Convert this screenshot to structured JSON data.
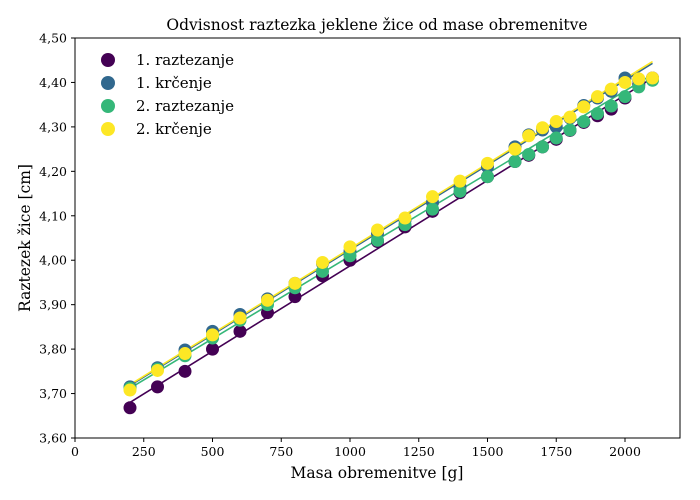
{
  "chart_data": {
    "type": "scatter",
    "title": "Odvisnost raztezka jeklene žice od mase obremenitve",
    "xlabel": "Masa obremenitve [g]",
    "ylabel": "Raztezek žice [cm]",
    "xlim": [
      0,
      2200
    ],
    "ylim": [
      3.6,
      4.5
    ],
    "xticks": [
      0,
      250,
      500,
      750,
      1000,
      1250,
      1500,
      1750,
      2000
    ],
    "yticks": [
      3.6,
      3.7,
      3.8,
      3.9,
      4.0,
      4.1,
      4.2,
      4.3,
      4.4,
      4.5
    ],
    "ytick_labels": [
      "3,60",
      "3,70",
      "3,80",
      "3,90",
      "4,00",
      "4,10",
      "4,20",
      "4,30",
      "4,40",
      "4,50"
    ],
    "legend_position": "top-left",
    "series": [
      {
        "name": "1. raztezanje",
        "color": "#440154",
        "x": [
          200,
          300,
          400,
          500,
          600,
          700,
          800,
          900,
          1000,
          1100,
          1200,
          1300,
          1400,
          1500,
          1600,
          1650,
          1700,
          1750,
          1800,
          1850,
          1900,
          1950,
          2000,
          2050,
          2100
        ],
        "y": [
          3.668,
          3.715,
          3.75,
          3.8,
          3.84,
          3.882,
          3.918,
          3.965,
          4.0,
          4.042,
          4.075,
          4.11,
          4.152,
          4.188,
          4.222,
          4.236,
          4.255,
          4.272,
          4.292,
          4.31,
          4.325,
          4.34,
          4.365,
          4.395,
          4.41
        ],
        "fit": [
          [
            200,
            3.68
          ],
          [
            2100,
            4.41
          ]
        ]
      },
      {
        "name": "1. krčenje",
        "color": "#31688e",
        "x": [
          200,
          300,
          400,
          500,
          600,
          700,
          800,
          900,
          1000,
          1100,
          1200,
          1300,
          1400,
          1500,
          1600,
          1650,
          1700,
          1750,
          1800,
          1850,
          1900,
          1950,
          2000,
          2050,
          2100
        ],
        "y": [
          3.715,
          3.758,
          3.798,
          3.84,
          3.878,
          3.913,
          3.948,
          3.993,
          4.02,
          4.06,
          4.09,
          4.13,
          4.165,
          4.21,
          4.255,
          4.282,
          4.293,
          4.3,
          4.32,
          4.348,
          4.365,
          4.38,
          4.41,
          4.405,
          4.408
        ],
        "fit": [
          [
            200,
            3.718
          ],
          [
            2100,
            4.443
          ]
        ]
      },
      {
        "name": "2. raztezanje",
        "color": "#35b779",
        "x": [
          200,
          300,
          400,
          500,
          600,
          700,
          800,
          900,
          1000,
          1100,
          1200,
          1300,
          1400,
          1500,
          1600,
          1650,
          1700,
          1750,
          1800,
          1850,
          1900,
          1950,
          2000,
          2050,
          2100
        ],
        "y": [
          3.712,
          3.755,
          3.785,
          3.825,
          3.865,
          3.9,
          3.938,
          3.975,
          4.01,
          4.045,
          4.08,
          4.115,
          4.155,
          4.188,
          4.222,
          4.238,
          4.255,
          4.275,
          4.293,
          4.312,
          4.33,
          4.347,
          4.368,
          4.39,
          4.405
        ],
        "fit": [
          [
            200,
            3.712
          ],
          [
            2100,
            4.418
          ]
        ]
      },
      {
        "name": "2. krčenje",
        "color": "#fde725",
        "x": [
          200,
          300,
          400,
          500,
          600,
          700,
          800,
          900,
          1000,
          1100,
          1200,
          1300,
          1400,
          1500,
          1600,
          1650,
          1700,
          1750,
          1800,
          1850,
          1900,
          1950,
          2000,
          2050,
          2100
        ],
        "y": [
          3.708,
          3.752,
          3.79,
          3.832,
          3.87,
          3.91,
          3.948,
          3.995,
          4.03,
          4.068,
          4.095,
          4.143,
          4.178,
          4.218,
          4.25,
          4.28,
          4.298,
          4.312,
          4.322,
          4.345,
          4.368,
          4.385,
          4.4,
          4.408,
          4.41
        ],
        "fit": [
          [
            200,
            3.72
          ],
          [
            2100,
            4.447
          ]
        ]
      }
    ]
  }
}
